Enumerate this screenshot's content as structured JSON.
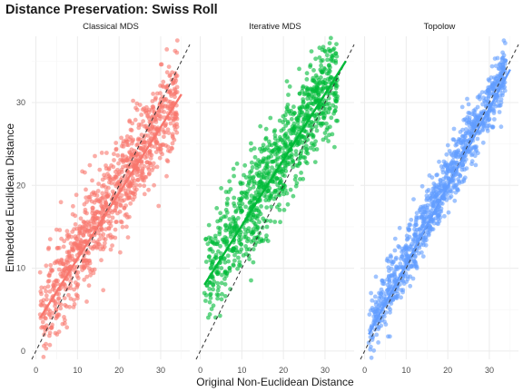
{
  "title": "Distance Preservation: Swiss Roll",
  "chart_data": {
    "type": "scatter",
    "title": "Distance Preservation: Swiss Roll",
    "xlabel": "Original Non-Euclidean Distance",
    "ylabel": "Embedded Euclidean Distance",
    "xlim": [
      -1,
      37
    ],
    "ylim": [
      -1,
      38
    ],
    "x_ticks": [
      0,
      10,
      20,
      30
    ],
    "y_ticks": [
      0,
      10,
      20,
      30
    ],
    "grid": true,
    "reference_line": {
      "style": "dashed",
      "color": "#333333",
      "slope": 1,
      "intercept": 0
    },
    "panels": [
      {
        "name": "Classical MDS",
        "color": "#F8766D",
        "fit_line": {
          "x": [
            1,
            35
          ],
          "y": [
            4,
            31
          ]
        },
        "cloud": {
          "x_min": 1,
          "x_max": 34,
          "center_intercept": 4.0,
          "center_slope": 0.79,
          "spread_sd": 2.8
        },
        "sample_points": [
          [
            1,
            9.5
          ],
          [
            2,
            2
          ],
          [
            3,
            5
          ],
          [
            6,
            8
          ],
          [
            8,
            12
          ],
          [
            12,
            19.5
          ],
          [
            15,
            16
          ],
          [
            20,
            18
          ],
          [
            22,
            23
          ],
          [
            25,
            20
          ],
          [
            28,
            27
          ],
          [
            30,
            30
          ],
          [
            33,
            28
          ],
          [
            34,
            37.5
          ]
        ]
      },
      {
        "name": "Iterative MDS",
        "color": "#00BA38",
        "fit_line": {
          "x": [
            1,
            35
          ],
          "y": [
            8,
            35
          ]
        },
        "cloud": {
          "x_min": 1,
          "x_max": 33,
          "center_intercept": 7.9,
          "center_slope": 0.79,
          "spread_sd": 3.0
        },
        "sample_points": [
          [
            1,
            7
          ],
          [
            3,
            12
          ],
          [
            5,
            16
          ],
          [
            8,
            22
          ],
          [
            12,
            18
          ],
          [
            15,
            23
          ],
          [
            18,
            26
          ],
          [
            20,
            20
          ],
          [
            22,
            28
          ],
          [
            25,
            31
          ],
          [
            28,
            30
          ],
          [
            30,
            34
          ],
          [
            32,
            35
          ]
        ]
      },
      {
        "name": "Topolow",
        "color": "#619CFF",
        "fit_line": {
          "x": [
            1,
            35
          ],
          "y": [
            2,
            34
          ]
        },
        "cloud": {
          "x_min": 1,
          "x_max": 34,
          "center_intercept": 1.6,
          "center_slope": 0.95,
          "spread_sd": 1.8
        },
        "sample_points": [
          [
            1,
            1
          ],
          [
            3,
            3
          ],
          [
            5,
            6
          ],
          [
            8,
            8
          ],
          [
            10,
            11
          ],
          [
            15,
            15
          ],
          [
            20,
            19
          ],
          [
            25,
            24
          ],
          [
            30,
            29
          ],
          [
            33,
            33
          ]
        ]
      }
    ]
  }
}
